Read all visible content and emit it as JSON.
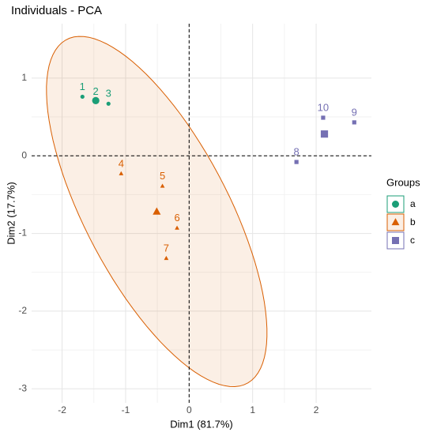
{
  "chart_data": {
    "type": "scatter",
    "title": "Individuals - PCA",
    "x_label": "Dim1 (81.7%)",
    "y_label": "Dim2 (17.7%)",
    "legend_title": "Groups",
    "legend_position": "right",
    "xlim": [
      -2.48,
      2.87
    ],
    "ylim": [
      -3.18,
      1.7
    ],
    "xticks": [
      -2,
      -1,
      0,
      1,
      2
    ],
    "yticks": [
      -3,
      -2,
      -1,
      0,
      1
    ],
    "grid": true,
    "hline": 0,
    "vline": 0,
    "series": [
      {
        "name": "a",
        "color": "#1b9e77",
        "shape": "circle",
        "labels": [
          "1",
          "2",
          "3"
        ],
        "x": [
          -1.68,
          -1.47,
          -1.27
        ],
        "values": [
          0.76,
          0.7,
          0.67
        ],
        "centroid": [
          -1.47,
          0.71
        ],
        "ellipse": false
      },
      {
        "name": "b",
        "color": "#d95f02",
        "shape": "triangle",
        "labels": [
          "4",
          "5",
          "6",
          "7"
        ],
        "x": [
          -1.07,
          -0.42,
          -0.19,
          -0.36
        ],
        "values": [
          -0.23,
          -0.39,
          -0.93,
          -1.32
        ],
        "centroid": [
          -0.51,
          -0.72
        ],
        "ellipse": true
      },
      {
        "name": "c",
        "color": "#7570b3",
        "shape": "square",
        "labels": [
          "8",
          "9",
          "10"
        ],
        "x": [
          1.69,
          2.6,
          2.11
        ],
        "values": [
          -0.08,
          0.43,
          0.49
        ],
        "centroid": [
          2.13,
          0.28
        ],
        "ellipse": false
      }
    ]
  }
}
